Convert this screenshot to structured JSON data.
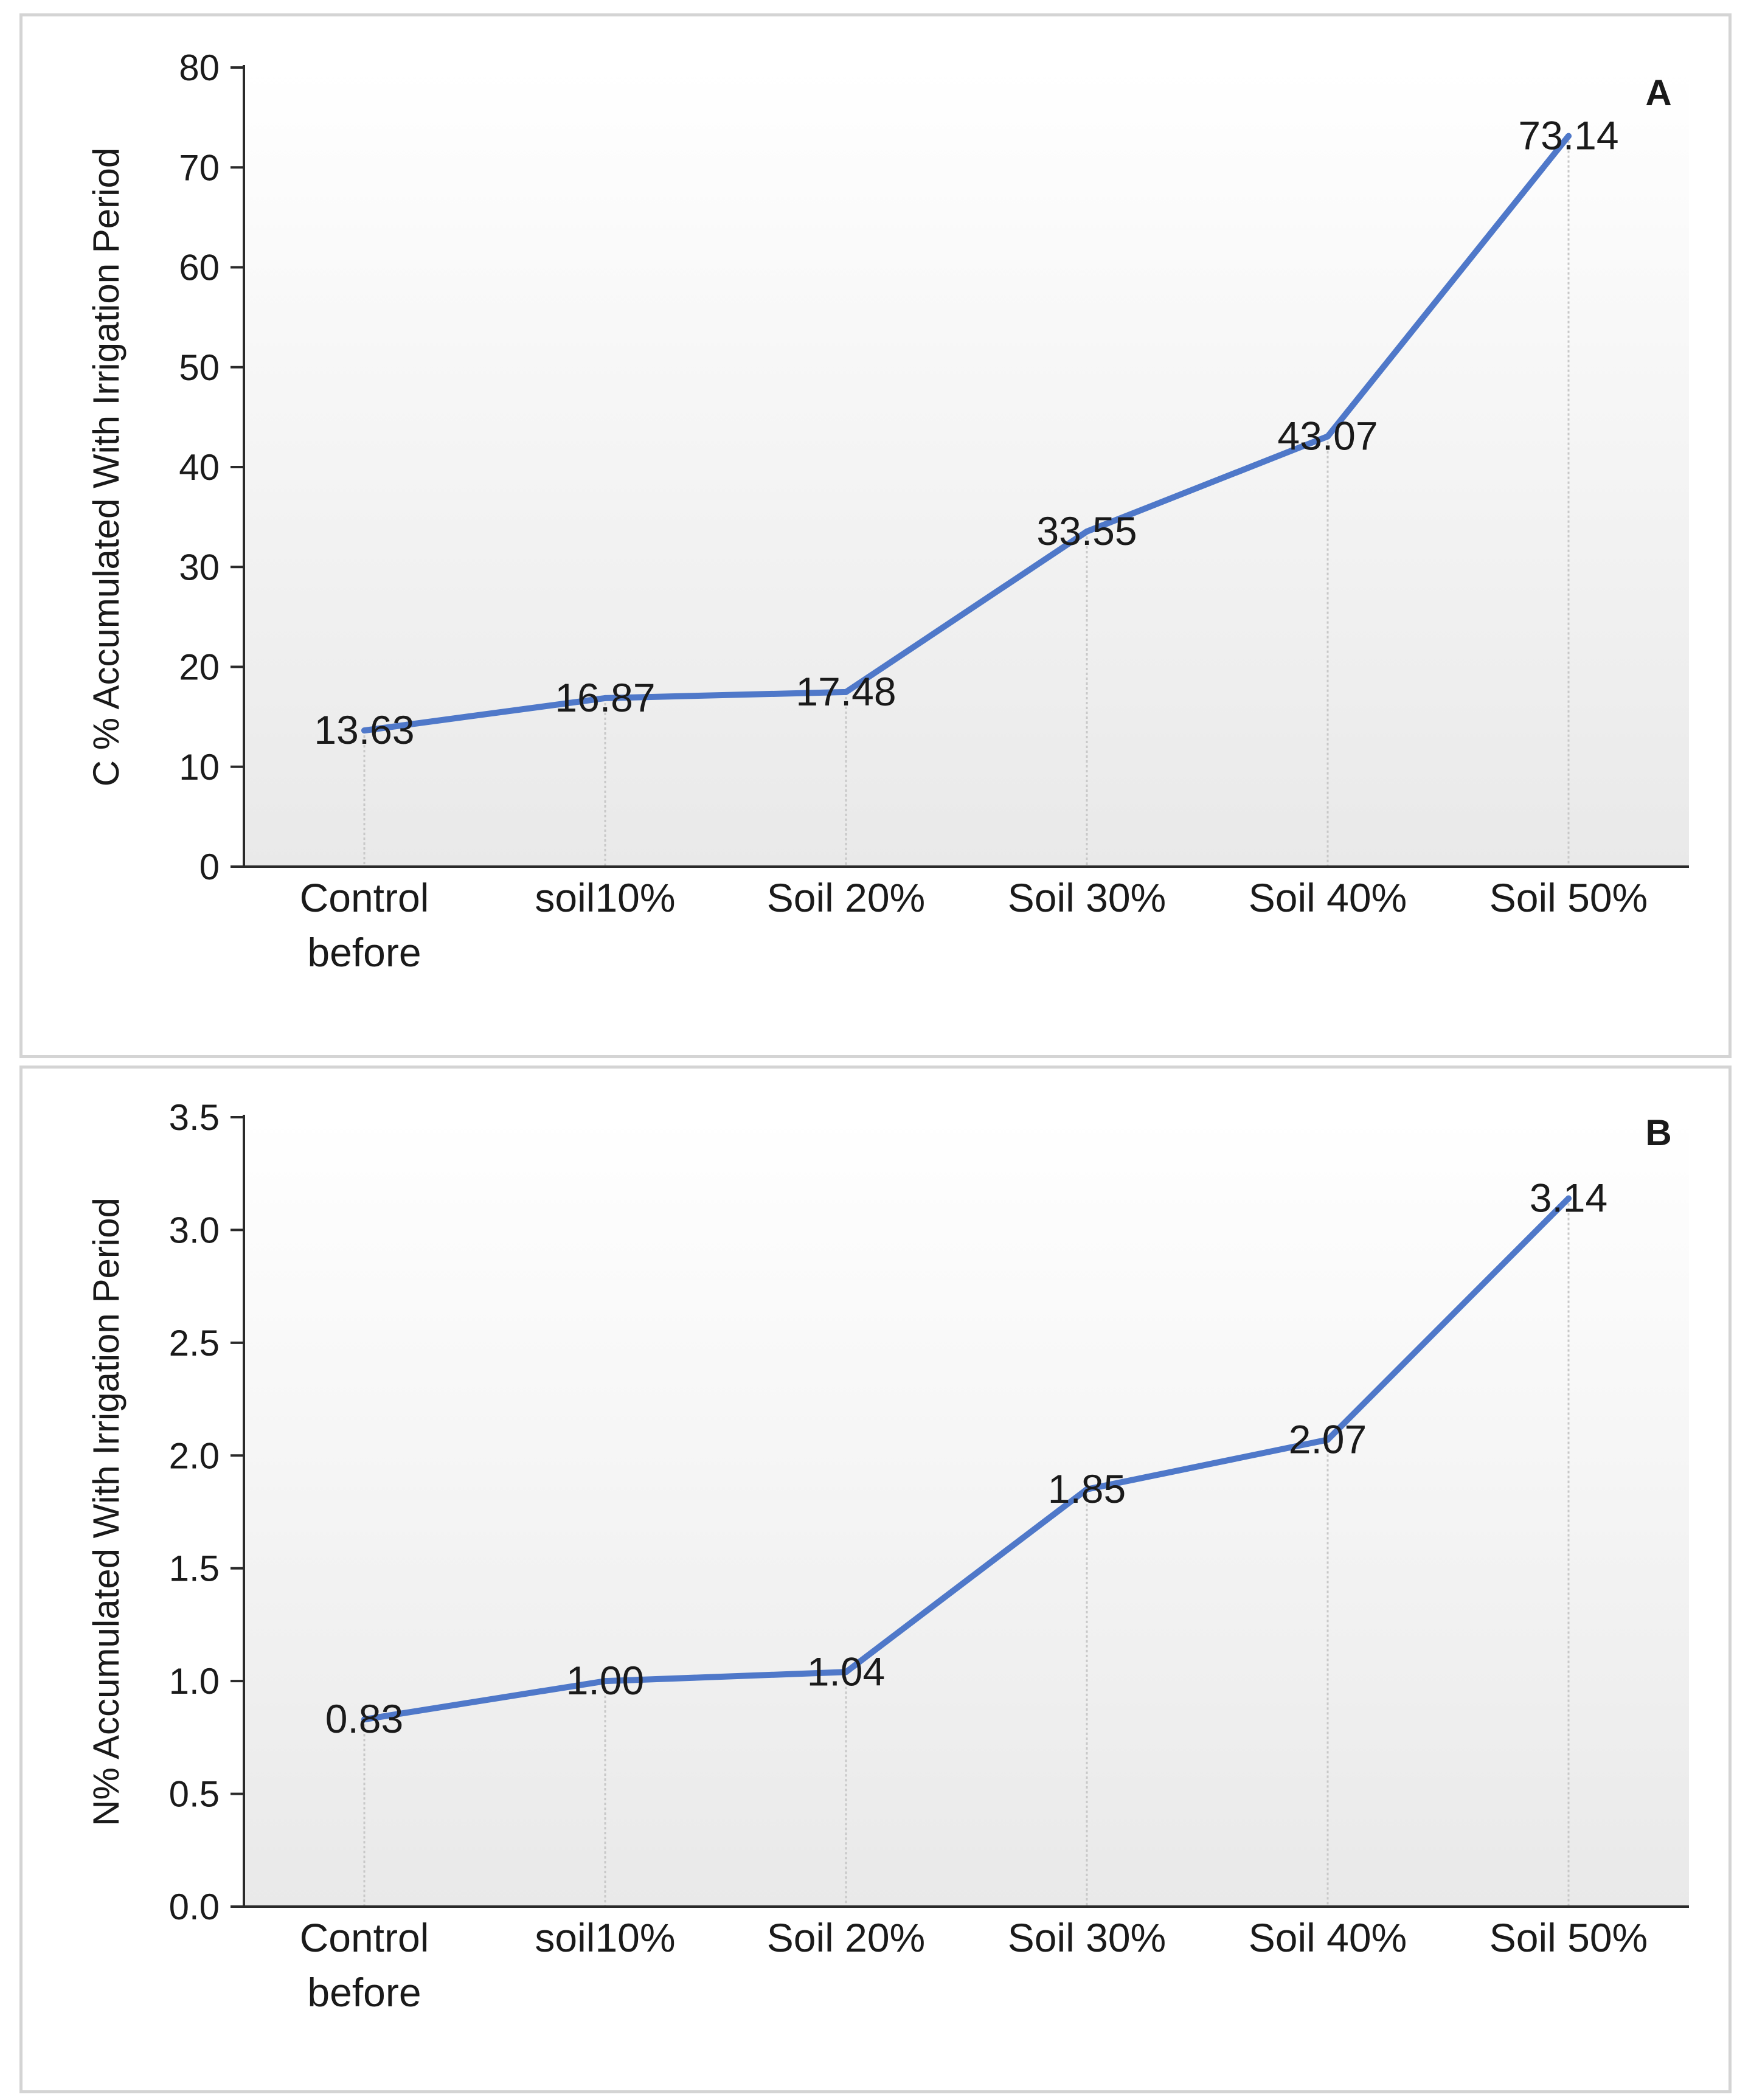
{
  "chart_data": [
    {
      "type": "line",
      "panel_label": "A",
      "categories": [
        [
          "Control",
          "before"
        ],
        [
          "soil10%"
        ],
        [
          "Soil 20%"
        ],
        [
          "Soil 30%"
        ],
        [
          "Soil 40%"
        ],
        [
          "Soil 50%"
        ]
      ],
      "values": [
        13.63,
        16.87,
        17.48,
        33.55,
        43.07,
        73.14
      ],
      "value_labels": [
        "13.63",
        "16.87",
        "17.48",
        "33.55",
        "43.07",
        "73.14"
      ],
      "ylabel": "C % Accumulated With Irrigation Period",
      "xlabel": "",
      "ylim": [
        0,
        80
      ],
      "yticks": [
        0,
        10,
        20,
        30,
        40,
        50,
        60,
        70,
        80
      ],
      "ytick_labels": [
        "0",
        "10",
        "20",
        "30",
        "40",
        "50",
        "60",
        "70",
        "80"
      ],
      "line_color": "#4f78c9",
      "drop_lines": true,
      "legend": "none"
    },
    {
      "type": "line",
      "panel_label": "B",
      "categories": [
        [
          "Control",
          "before"
        ],
        [
          "soil10%"
        ],
        [
          "Soil 20%"
        ],
        [
          "Soil 30%"
        ],
        [
          "Soil 40%"
        ],
        [
          "Soil 50%"
        ]
      ],
      "values": [
        0.83,
        1.0,
        1.04,
        1.85,
        2.07,
        3.14
      ],
      "value_labels": [
        "0.83",
        "1.00",
        "1.04",
        "1.85",
        "2.07",
        "3.14"
      ],
      "ylabel": "N% Accumulated With Irrigation Period",
      "xlabel": "",
      "ylim": [
        0,
        3.5
      ],
      "yticks": [
        0,
        0.5,
        1.0,
        1.5,
        2.0,
        2.5,
        3.0,
        3.5
      ],
      "ytick_labels": [
        "0.0",
        "0.5",
        "1.0",
        "1.5",
        "2.0",
        "2.5",
        "3.0",
        "3.5"
      ],
      "line_color": "#4f78c9",
      "drop_lines": true,
      "legend": "none"
    }
  ]
}
